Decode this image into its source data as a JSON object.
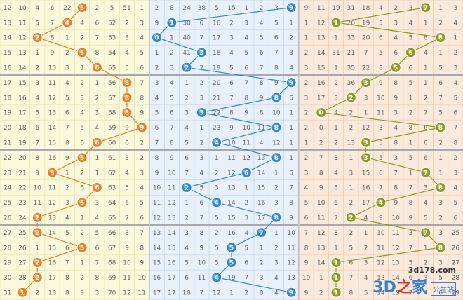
{
  "chart_data": {
    "type": "table",
    "rows": [
      [
        "12",
        "10",
        "4",
        "6",
        "22",
        "5",
        "2",
        "5",
        "51",
        "1",
        "2",
        "8",
        "24",
        "38",
        "5",
        "15",
        "1",
        "2",
        "3",
        "8",
        "9",
        "11",
        "19",
        "31",
        "18",
        "4",
        "2",
        "3",
        "7",
        "1",
        "3"
      ],
      [
        "13",
        "11",
        "5",
        "7",
        "1",
        "4",
        "6",
        "52",
        "2",
        "3",
        "9",
        "1",
        "30",
        "6",
        "16",
        "2",
        "3",
        "4",
        "5",
        "1",
        "1",
        "12",
        "1",
        "20",
        "19",
        "5",
        "3",
        "4",
        "1",
        "2",
        "4"
      ],
      [
        "14",
        "12",
        "2",
        "8",
        "1",
        "2",
        "7",
        "53",
        "3",
        "4",
        "0",
        "1",
        "40",
        "7",
        "17",
        "3",
        "4",
        "5",
        "6",
        "2",
        "1",
        "13",
        "1",
        "33",
        "20",
        "6",
        "4",
        "5",
        "8",
        "3",
        "1"
      ],
      [
        "15",
        "13",
        "1",
        "9",
        "2",
        "5",
        "8",
        "54",
        "4",
        "5",
        "1",
        "2",
        "41",
        "3",
        "18",
        "4",
        "5",
        "6",
        "7",
        "3",
        "2",
        "14",
        "31",
        "21",
        "7",
        "5",
        "6",
        "1",
        "4",
        "1",
        "2"
      ],
      [
        "16",
        "14",
        "2",
        "10",
        "3",
        "1",
        "6",
        "55",
        "5",
        "6",
        "2",
        "3",
        "1",
        "2",
        "19",
        "5",
        "6",
        "7",
        "8",
        "4",
        "3",
        "15",
        "1",
        "35",
        "22",
        "8",
        "7",
        "6",
        "1",
        "5",
        "3"
      ],
      [
        "17",
        "15",
        "3",
        "11",
        "4",
        "2",
        "1",
        "56",
        "7",
        "7",
        "3",
        "4",
        "1",
        "2",
        "20",
        "6",
        "7",
        "8",
        "9",
        "5",
        "2",
        "16",
        "2",
        "36",
        "23",
        "9",
        "8",
        "5",
        "1",
        "6",
        "4"
      ],
      [
        "18",
        "16",
        "4",
        "12",
        "5",
        "3",
        "2",
        "57",
        "8",
        "8",
        "4",
        "5",
        "2",
        "3",
        "21",
        "7",
        "8",
        "9",
        "8",
        "6",
        "3",
        "17",
        "3",
        "37",
        "3",
        "10",
        "9",
        "1",
        "2",
        "7",
        "5"
      ],
      [
        "19",
        "17",
        "5",
        "13",
        "6",
        "4",
        "3",
        "58",
        "8",
        "9",
        "5",
        "6",
        "3",
        "3",
        "22",
        "8",
        "9",
        "8",
        "10",
        "1",
        "2",
        "18",
        "4",
        "2",
        "1",
        "11",
        "3",
        "2",
        "7",
        "5",
        "6"
      ],
      [
        "20",
        "18",
        "6",
        "14",
        "7",
        "5",
        "4",
        "59",
        "9",
        "1",
        "6",
        "7",
        "4",
        "1",
        "23",
        "9",
        "10",
        "11",
        "3",
        "1",
        "2",
        "0",
        "1",
        "2",
        "12",
        "3",
        "4",
        "8",
        "6",
        "5",
        "7"
      ],
      [
        "21",
        "19",
        "7",
        "15",
        "8",
        "6",
        "5",
        "60",
        "6",
        "2",
        "7",
        "8",
        "5",
        "2",
        "24",
        "10",
        "11",
        "4",
        "12",
        "1",
        "1",
        "2",
        "2",
        "13",
        "4",
        "5",
        "8",
        "1",
        "6",
        "2",
        "8"
      ],
      [
        "22",
        "20",
        "8",
        "16",
        "9",
        "5",
        "1",
        "61",
        "3",
        "2",
        "8",
        "9",
        "6",
        "3",
        "1",
        "11",
        "12",
        "13",
        "3",
        "1",
        "2",
        "7",
        "3",
        "1",
        "4",
        "5",
        "3",
        "5",
        "6",
        "1",
        "2"
      ],
      [
        "23",
        "21",
        "9",
        "3",
        "1",
        "2",
        "1",
        "62",
        "4",
        "3",
        "9",
        "10",
        "7",
        "4",
        "2",
        "12",
        "6",
        "14",
        "1",
        "6",
        "3",
        "8",
        "4",
        "3",
        "15",
        "6",
        "7",
        "1",
        "2",
        "1",
        "3"
      ],
      [
        "24",
        "22",
        "10",
        "11",
        "2",
        "6",
        "2",
        "63",
        "5",
        "4",
        "10",
        "11",
        "2",
        "5",
        "3",
        "13",
        "1",
        "15",
        "2",
        "7",
        "4",
        "9",
        "5",
        "1",
        "16",
        "7",
        "8",
        "7",
        "3",
        "4",
        "4"
      ],
      [
        "25",
        "23",
        "11",
        "12",
        "3",
        "5",
        "3",
        "64",
        "6",
        "5",
        "11",
        "12",
        "1",
        "6",
        "4",
        "14",
        "2",
        "16",
        "3",
        "8",
        "5",
        "10",
        "6",
        "2",
        "17",
        "8",
        "9",
        "8",
        "4",
        "3",
        "5"
      ],
      [
        "26",
        "24",
        "2",
        "13",
        "4",
        "1",
        "4",
        "65",
        "7",
        "6",
        "12",
        "13",
        "2",
        "7",
        "5",
        "15",
        "3",
        "17",
        "3",
        "9",
        "6",
        "11",
        "7",
        "3",
        "4",
        "9",
        "10",
        "9",
        "5",
        "2",
        "6"
      ],
      [
        "27",
        "25",
        "2",
        "14",
        "5",
        "2",
        "5",
        "66",
        "8",
        "7",
        "13",
        "14",
        "3",
        "8",
        "2",
        "16",
        "4",
        "7",
        "1",
        "10",
        "7",
        "12",
        "8",
        "2",
        "1",
        "10",
        "11",
        "3",
        "6",
        "3",
        "25"
      ],
      [
        "28",
        "26",
        "1",
        "15",
        "6",
        "5",
        "6",
        "67",
        "9",
        "8",
        "14",
        "15",
        "4",
        "9",
        "5",
        "17",
        "5",
        "1",
        "2",
        "11",
        "8",
        "13",
        "1",
        "5",
        "2",
        "11",
        "12",
        "7",
        "1",
        "4",
        "26"
      ],
      [
        "29",
        "27",
        "2",
        "16",
        "7",
        "1",
        "7",
        "68",
        "10",
        "9",
        "15",
        "16",
        "5",
        "10",
        "5",
        "18",
        "6",
        "2",
        "3",
        "12",
        "9",
        "14",
        "2",
        "6",
        "3",
        "12",
        "13",
        "5",
        "2",
        "3",
        "27"
      ],
      [
        "30",
        "28",
        "2",
        "17",
        "8",
        "2",
        "8",
        "69",
        "11",
        "10",
        "16",
        "17",
        "6",
        "11",
        "4",
        "19",
        "7",
        "3",
        "4",
        "13",
        "10",
        "1",
        "3",
        "7",
        "4",
        "13",
        "14",
        "6",
        "3",
        "5",
        "28"
      ],
      [
        "31",
        "1",
        "2",
        "18",
        "8",
        "9",
        "3",
        "70",
        "12",
        "11",
        "17",
        "17",
        "18",
        "7",
        "12",
        "1",
        "2",
        "8",
        "4",
        "5",
        "9",
        "2",
        "1",
        "8",
        "5",
        "14",
        "15",
        "7",
        "4",
        "6",
        "29"
      ]
    ],
    "series": [
      {
        "values": [
          5,
          4,
          2,
          5,
          6,
          8,
          8,
          8,
          9,
          6,
          5,
          3,
          6,
          5,
          2,
          2,
          5,
          2,
          2,
          1
        ],
        "color": "#f07e1e"
      },
      {
        "values": [
          9,
          1,
          0,
          3,
          2,
          9,
          8,
          3,
          8,
          4,
          8,
          6,
          2,
          4,
          8,
          7,
          5,
          5,
          4,
          9
        ],
        "color": "#2f86d8"
      },
      {
        "values": [
          7,
          1,
          8,
          6,
          5,
          3,
          2,
          0,
          8,
          3,
          3,
          7,
          8,
          4,
          2,
          7,
          8,
          1,
          1,
          1
        ],
        "color": "#8d9a22"
      }
    ],
    "watermark": {
      "url": "3d178.com",
      "logo_left": "3D",
      "logo_mid": "之",
      "logo_right": "家",
      "tag": "公益站"
    }
  }
}
